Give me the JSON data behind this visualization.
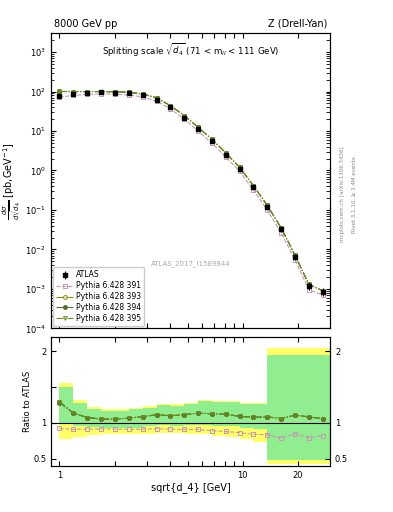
{
  "title_left": "8000 GeV pp",
  "title_right": "Z (Drell-Yan)",
  "watermark": "ATLAS_2017_I1589844",
  "right_label1": "mcplots.cern.ch [arXiv:1306.3436]",
  "right_label2": "Rivet 3.1.10, ≥ 3.4M events",
  "atlas_x": [
    1.0,
    1.19,
    1.42,
    1.69,
    2.01,
    2.39,
    2.85,
    3.39,
    4.03,
    4.8,
    5.71,
    6.79,
    8.08,
    9.62,
    11.45,
    13.62,
    16.21,
    19.29,
    22.96,
    27.32
  ],
  "atlas_y": [
    78.0,
    88.0,
    93.0,
    95.0,
    94.0,
    90.0,
    80.0,
    62.0,
    40.0,
    22.0,
    11.0,
    5.5,
    2.5,
    1.1,
    0.38,
    0.12,
    0.033,
    0.0065,
    0.0012,
    0.00085
  ],
  "atlas_yerr": [
    5.0,
    5.5,
    5.5,
    5.5,
    5.5,
    5.0,
    5.0,
    4.0,
    3.0,
    1.8,
    0.9,
    0.5,
    0.25,
    0.12,
    0.045,
    0.015,
    0.005,
    0.0012,
    0.00025,
    0.0002
  ],
  "py391_x": [
    1.0,
    1.19,
    1.42,
    1.69,
    2.01,
    2.39,
    2.85,
    3.39,
    4.03,
    4.8,
    5.71,
    6.79,
    8.08,
    9.62,
    11.45,
    13.62,
    16.21,
    19.29,
    22.96,
    27.32
  ],
  "py391_y": [
    72.0,
    80.0,
    85.0,
    87.0,
    86.0,
    82.0,
    73.0,
    57.0,
    36.5,
    20.0,
    10.0,
    4.9,
    2.2,
    0.95,
    0.32,
    0.1,
    0.026,
    0.0055,
    0.00095,
    0.0007
  ],
  "py393_x": [
    1.0,
    1.19,
    1.42,
    1.69,
    2.01,
    2.39,
    2.85,
    3.39,
    4.03,
    4.8,
    5.71,
    6.79,
    8.08,
    9.62,
    11.45,
    13.62,
    16.21,
    19.29,
    22.96,
    27.32
  ],
  "py393_y": [
    101.0,
    100.0,
    100.0,
    100.0,
    99.0,
    96.0,
    87.0,
    69.0,
    44.0,
    24.5,
    12.5,
    6.2,
    2.8,
    1.2,
    0.41,
    0.13,
    0.035,
    0.0072,
    0.0013,
    0.0009
  ],
  "py394_x": [
    1.0,
    1.19,
    1.42,
    1.69,
    2.01,
    2.39,
    2.85,
    3.39,
    4.03,
    4.8,
    5.71,
    6.79,
    8.08,
    9.62,
    11.45,
    13.62,
    16.21,
    19.29,
    22.96,
    27.32
  ],
  "py394_y": [
    100.0,
    100.0,
    100.0,
    100.0,
    99.0,
    96.0,
    87.0,
    69.0,
    44.0,
    24.5,
    12.5,
    6.2,
    2.8,
    1.2,
    0.41,
    0.13,
    0.035,
    0.0072,
    0.0013,
    0.0009
  ],
  "py395_x": [
    1.0,
    1.19,
    1.42,
    1.69,
    2.01,
    2.39,
    2.85,
    3.39,
    4.03,
    4.8,
    5.71,
    6.79,
    8.08,
    9.62,
    11.45,
    13.62,
    16.21,
    19.29,
    22.96,
    27.32
  ],
  "py395_y": [
    101.0,
    100.0,
    100.0,
    100.0,
    99.0,
    96.0,
    87.0,
    69.0,
    44.0,
    24.5,
    12.5,
    6.2,
    2.8,
    1.2,
    0.41,
    0.13,
    0.035,
    0.0072,
    0.0013,
    0.0009
  ],
  "ratio391_y": [
    0.923,
    0.909,
    0.914,
    0.916,
    0.915,
    0.911,
    0.913,
    0.919,
    0.913,
    0.909,
    0.909,
    0.891,
    0.88,
    0.864,
    0.842,
    0.833,
    0.788,
    0.846,
    0.792,
    0.824
  ],
  "ratio393_y": [
    1.295,
    1.136,
    1.075,
    1.053,
    1.053,
    1.067,
    1.088,
    1.113,
    1.1,
    1.114,
    1.136,
    1.127,
    1.12,
    1.091,
    1.079,
    1.083,
    1.061,
    1.108,
    1.083,
    1.059
  ],
  "ratio394_y": [
    1.282,
    1.136,
    1.075,
    1.053,
    1.053,
    1.067,
    1.088,
    1.113,
    1.1,
    1.114,
    1.136,
    1.127,
    1.12,
    1.091,
    1.079,
    1.083,
    1.061,
    1.108,
    1.083,
    1.059
  ],
  "ratio395_y": [
    1.295,
    1.136,
    1.075,
    1.053,
    1.053,
    1.067,
    1.088,
    1.113,
    1.1,
    1.114,
    1.136,
    1.127,
    1.12,
    1.091,
    1.079,
    1.083,
    1.061,
    1.108,
    1.083,
    1.059
  ],
  "band_yellow_x": [
    1.0,
    1.19,
    1.42,
    1.69,
    2.01,
    2.39,
    2.85,
    3.39,
    4.03,
    4.8,
    5.71,
    6.79,
    8.08,
    9.62,
    11.45,
    13.62,
    16.21,
    30.0
  ],
  "band_yellow_lo": [
    0.78,
    0.8,
    0.83,
    0.84,
    0.84,
    0.84,
    0.85,
    0.86,
    0.86,
    0.85,
    0.84,
    0.82,
    0.8,
    0.77,
    0.73,
    0.42,
    0.42,
    0.42
  ],
  "band_yellow_hi": [
    1.55,
    1.32,
    1.22,
    1.19,
    1.19,
    1.21,
    1.23,
    1.27,
    1.26,
    1.28,
    1.32,
    1.31,
    1.31,
    1.28,
    1.28,
    2.05,
    2.05,
    2.05
  ],
  "band_green_x": [
    1.0,
    1.19,
    1.42,
    1.69,
    2.01,
    2.39,
    2.85,
    3.39,
    4.03,
    4.8,
    5.71,
    6.79,
    8.08,
    9.62,
    11.45,
    13.62,
    16.21,
    30.0
  ],
  "band_green_lo": [
    1.0,
    0.96,
    0.94,
    0.93,
    0.93,
    0.935,
    0.95,
    0.965,
    0.96,
    0.965,
    0.97,
    0.96,
    0.95,
    0.93,
    0.91,
    0.48,
    0.48,
    0.48
  ],
  "band_green_hi": [
    1.5,
    1.28,
    1.19,
    1.17,
    1.17,
    1.19,
    1.21,
    1.25,
    1.24,
    1.26,
    1.3,
    1.29,
    1.29,
    1.26,
    1.26,
    1.95,
    1.95,
    1.95
  ],
  "color391": "#c896b4",
  "color393": "#8b8b00",
  "color394": "#556b2f",
  "color395": "#6b8e23",
  "main_ylim": [
    0.0001,
    3000.0
  ],
  "ratio_ylim": [
    0.4,
    2.2
  ],
  "xlim": [
    0.9,
    30.0
  ]
}
